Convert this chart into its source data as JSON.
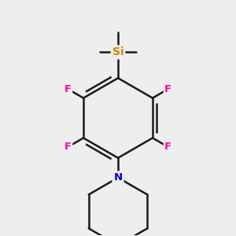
{
  "background_color": "#eeeeee",
  "bond_color": "#1a1a1a",
  "bond_width": 1.8,
  "si_color": "#CC8800",
  "f_color": "#FF00AA",
  "n_color": "#0000CC",
  "si_label": "Si",
  "f_label": "F",
  "n_label": "N",
  "figsize": [
    3.0,
    3.0
  ],
  "dpi": 100
}
